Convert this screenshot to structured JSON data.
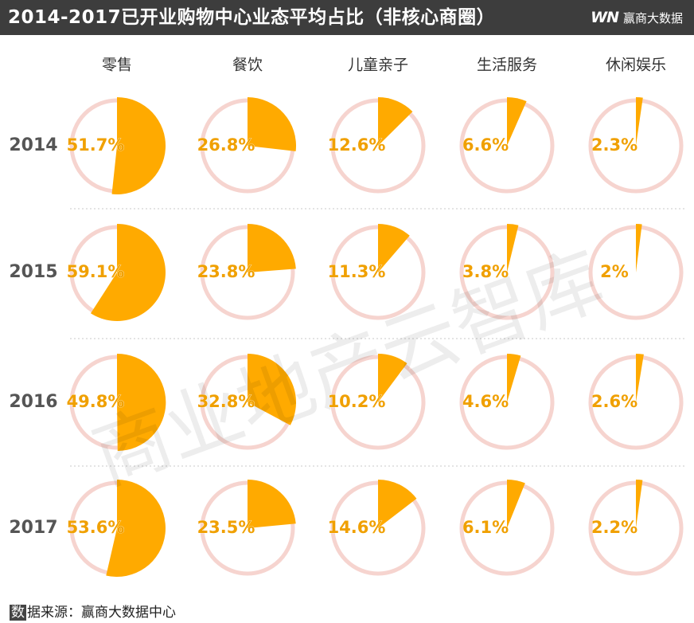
{
  "header": {
    "title": "2014-2017已开业购物中心业态平均占比（非核心商圈）",
    "brand_logo": "WN",
    "brand_name": "赢商大数据"
  },
  "footer": {
    "source_first": "数",
    "source_rest": "据来源：赢商大数据中心"
  },
  "watermark": "商业地产云智库",
  "colors": {
    "slice": "#ffaa00",
    "ring": "#f6d4cf",
    "label": "#f0a000",
    "year_label": "#555555",
    "header_bg": "#3d3d3d"
  },
  "chart_data": {
    "type": "pie",
    "title": "2014-2017已开业购物中心业态平均占比（非核心商圈）",
    "categories": [
      "零售",
      "餐饮",
      "儿童亲子",
      "生活服务",
      "休闲娱乐"
    ],
    "rows": [
      "2014",
      "2015",
      "2016",
      "2017"
    ],
    "series": [
      {
        "name": "2014",
        "values": [
          51.7,
          26.8,
          12.6,
          6.6,
          2.3
        ],
        "labels": [
          "51.7%",
          "26.8%",
          "12.6%",
          "6.6%",
          "2.3%"
        ]
      },
      {
        "name": "2015",
        "values": [
          59.1,
          23.8,
          11.3,
          3.8,
          2
        ],
        "labels": [
          "59.1%",
          "23.8%",
          "11.3%",
          "3.8%",
          "2%"
        ]
      },
      {
        "name": "2016",
        "values": [
          49.8,
          32.8,
          10.2,
          4.6,
          2.6
        ],
        "labels": [
          "49.8%",
          "32.8%",
          "10.2%",
          "4.6%",
          "2.6%"
        ]
      },
      {
        "name": "2017",
        "values": [
          53.6,
          23.5,
          14.6,
          6.1,
          2.2
        ],
        "labels": [
          "53.6%",
          "23.5%",
          "14.6%",
          "6.1%",
          "2.2%"
        ]
      }
    ]
  }
}
